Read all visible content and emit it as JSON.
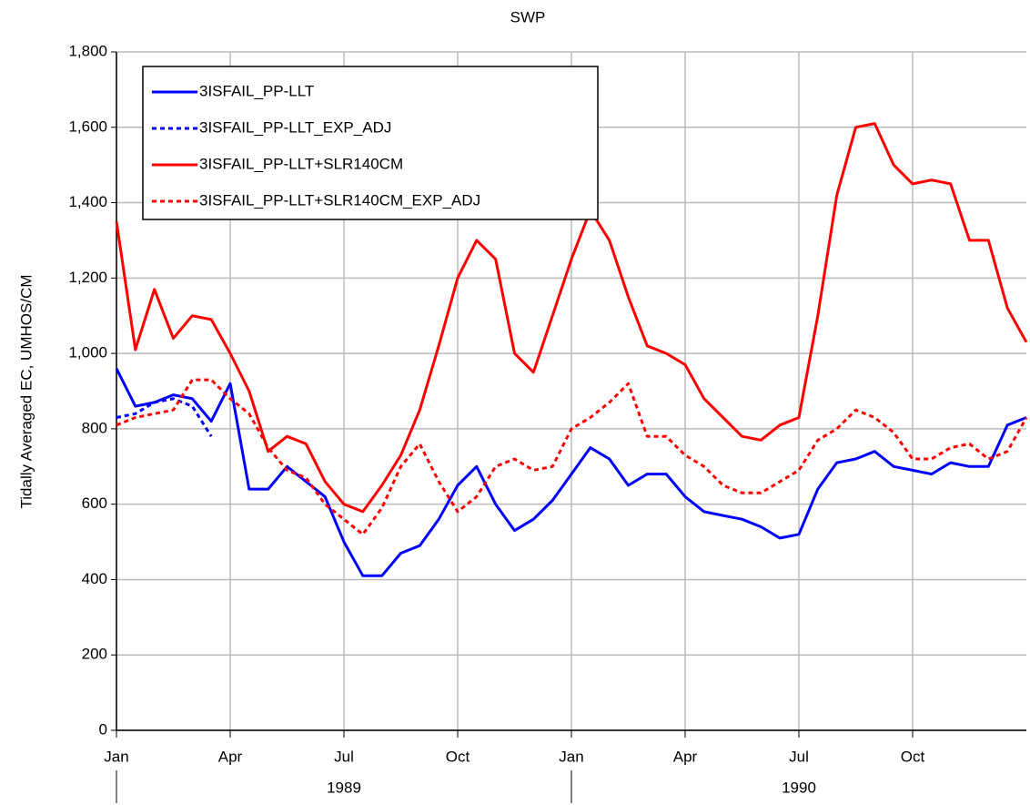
{
  "chart_data": {
    "type": "line",
    "title": "SWP",
    "y_label": "Tidally Averaged EC, UMHOS/CM",
    "x": [
      0,
      0.5,
      1,
      1.5,
      2,
      2.5,
      3,
      3.5,
      4,
      4.5,
      5,
      5.5,
      6,
      6.5,
      7,
      7.5,
      8,
      8.5,
      9,
      9.5,
      10,
      10.5,
      11,
      11.5,
      12,
      12.5,
      13,
      13.5,
      14,
      14.5,
      15,
      15.5,
      16,
      16.5,
      17,
      17.5,
      18,
      18.5,
      19,
      19.5,
      20,
      20.5,
      21,
      21.5,
      22,
      22.5,
      23,
      23.5,
      24
    ],
    "xlim": [
      0,
      24
    ],
    "xticks": [
      {
        "value": 0,
        "label": "Jan"
      },
      {
        "value": 3,
        "label": "Apr"
      },
      {
        "value": 6,
        "label": "Jul"
      },
      {
        "value": 9,
        "label": "Oct"
      },
      {
        "value": 12,
        "label": "Jan"
      },
      {
        "value": 15,
        "label": "Apr"
      },
      {
        "value": 18,
        "label": "Jul"
      },
      {
        "value": 21,
        "label": "Oct"
      }
    ],
    "year_labels": [
      {
        "value": 6,
        "label": "1989"
      },
      {
        "value": 18,
        "label": "1990"
      }
    ],
    "ylim": [
      0,
      1800
    ],
    "yticks": [
      0,
      200,
      400,
      600,
      800,
      {
        "value": 1000,
        "label": "1,000"
      },
      {
        "value": 1200,
        "label": "1,200"
      },
      {
        "value": 1400,
        "label": "1,400"
      },
      {
        "value": 1600,
        "label": "1,600"
      },
      {
        "value": 1800,
        "label": "1,800"
      }
    ],
    "grid": true,
    "legend": "upper left",
    "series": [
      {
        "name": "3ISFAIL_PP-LLT",
        "color": "#0000ff",
        "dashed": false,
        "values": [
          960,
          860,
          870,
          890,
          880,
          820,
          920,
          640,
          640,
          700,
          660,
          620,
          500,
          410,
          410,
          470,
          490,
          560,
          650,
          700,
          600,
          530,
          560,
          610,
          680,
          750,
          720,
          650,
          680,
          680,
          620,
          580,
          570,
          560,
          540,
          510,
          520,
          640,
          710,
          720,
          740,
          700,
          690,
          680,
          710,
          700,
          700,
          810,
          830
        ]
      },
      {
        "name": "3ISFAIL_PP-LLT_EXP_ADJ",
        "color": "#0000ff",
        "dashed": true,
        "values": [
          830,
          840,
          870,
          880,
          860,
          780,
          null,
          null,
          null,
          null,
          null,
          null,
          null,
          null,
          null,
          null,
          null,
          null,
          null,
          null,
          null,
          null,
          null,
          null,
          null,
          null,
          null,
          null,
          null,
          null,
          null,
          null,
          null,
          null,
          null,
          null,
          null,
          null,
          null,
          null,
          null,
          null,
          null,
          null,
          null,
          null,
          null,
          null,
          null
        ]
      },
      {
        "name": "3ISFAIL_PP-LLT+SLR140CM",
        "color": "#ff0000",
        "dashed": false,
        "values": [
          1350,
          1010,
          1170,
          1040,
          1100,
          1090,
          1000,
          900,
          740,
          780,
          760,
          660,
          600,
          580,
          650,
          730,
          850,
          1020,
          1200,
          1300,
          1250,
          1000,
          950,
          1100,
          1250,
          1380,
          1300,
          1150,
          1020,
          1000,
          970,
          880,
          830,
          780,
          770,
          810,
          830,
          1100,
          1420,
          1600,
          1610,
          1500,
          1450,
          1460,
          1450,
          1300,
          1300,
          1120,
          1030
        ]
      },
      {
        "name": "3ISFAIL_PP-LLT+SLR140CM_EXP_ADJ",
        "color": "#ff0000",
        "dashed": true,
        "values": [
          810,
          830,
          840,
          850,
          930,
          930,
          880,
          840,
          750,
          690,
          670,
          600,
          560,
          520,
          590,
          700,
          760,
          660,
          580,
          620,
          700,
          720,
          690,
          700,
          800,
          830,
          870,
          920,
          780,
          780,
          730,
          700,
          650,
          630,
          630,
          660,
          690,
          770,
          800,
          850,
          830,
          790,
          720,
          720,
          750,
          760,
          720,
          740,
          830
        ]
      }
    ]
  }
}
